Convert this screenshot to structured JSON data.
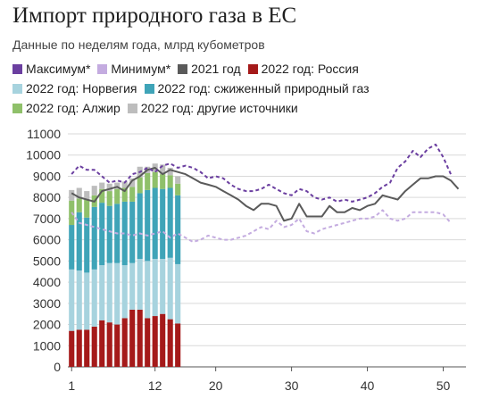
{
  "title": "Импорт природного газа в ЕС",
  "subtitle": "Данные по неделям года, млрд кубометров",
  "legend": [
    [
      {
        "label": "Максимум*",
        "color": "#6b3fa0"
      },
      {
        "label": "Минимум*",
        "color": "#c4ace0"
      },
      {
        "label": "2021 год",
        "color": "#5a5a5a"
      },
      {
        "label": "2022 год: Россия",
        "color": "#a51a1a"
      }
    ],
    [
      {
        "label": "2022 год: Норвегия",
        "color": "#a7d3de"
      },
      {
        "label": "2022 год: сжиженный природный газ",
        "color": "#3fa4b8"
      }
    ],
    [
      {
        "label": "2022 год: Алжир",
        "color": "#8fc06a"
      },
      {
        "label": "2022 год: другие источники",
        "color": "#bdbdbd"
      }
    ]
  ],
  "chart_data": {
    "type": "bar",
    "ylim": [
      0,
      11000
    ],
    "xlim": [
      0.5,
      53
    ],
    "grid": true,
    "yticks": [
      0,
      1000,
      2000,
      3000,
      4000,
      5000,
      6000,
      7000,
      8000,
      9000,
      10000,
      11000
    ],
    "xticks": [
      1,
      12,
      20,
      30,
      40,
      50
    ],
    "stacked_series": [
      {
        "name": "2022 год: Россия",
        "color": "#a51a1a",
        "x": [
          1,
          2,
          3,
          4,
          5,
          6,
          7,
          8,
          9,
          10,
          11,
          12,
          13,
          14,
          15
        ],
        "values": [
          1700,
          1750,
          1750,
          1900,
          2200,
          2100,
          2000,
          2300,
          2700,
          2700,
          2300,
          2400,
          2500,
          2250,
          2050
        ]
      },
      {
        "name": "2022 год: Норвегия",
        "color": "#a7d3de",
        "x": [
          1,
          2,
          3,
          4,
          5,
          6,
          7,
          8,
          9,
          10,
          11,
          12,
          13,
          14,
          15
        ],
        "values": [
          2900,
          2800,
          2700,
          2700,
          2600,
          2800,
          2900,
          2500,
          2200,
          2400,
          2700,
          2700,
          2600,
          2900,
          2800
        ]
      },
      {
        "name": "2022 год: сжиженный природный газ",
        "color": "#3fa4b8",
        "x": [
          1,
          2,
          3,
          4,
          5,
          6,
          7,
          8,
          9,
          10,
          11,
          12,
          13,
          14,
          15
        ],
        "values": [
          2100,
          2750,
          2600,
          2950,
          2950,
          2700,
          2800,
          3000,
          2900,
          3100,
          3350,
          3350,
          3300,
          3300,
          3250
        ]
      },
      {
        "name": "2022 год: Алжир",
        "color": "#8fc06a",
        "x": [
          1,
          2,
          3,
          4,
          5,
          6,
          7,
          8,
          9,
          10,
          11,
          12,
          13,
          14,
          15
        ],
        "values": [
          1150,
          650,
          850,
          550,
          650,
          700,
          700,
          650,
          700,
          750,
          800,
          750,
          700,
          600,
          550
        ]
      },
      {
        "name": "2022 год: другие источники",
        "color": "#bdbdbd",
        "x": [
          1,
          2,
          3,
          4,
          5,
          6,
          7,
          8,
          9,
          10,
          11,
          12,
          13,
          14,
          15
        ],
        "values": [
          500,
          500,
          400,
          450,
          300,
          350,
          300,
          300,
          400,
          500,
          300,
          400,
          450,
          350,
          350
        ]
      }
    ],
    "line_series": [
      {
        "name": "2021 год",
        "color": "#5a5a5a",
        "dashed": false,
        "x": [
          1,
          2,
          3,
          4,
          5,
          6,
          7,
          8,
          9,
          10,
          11,
          12,
          13,
          14,
          15,
          16,
          17,
          18,
          19,
          20,
          21,
          22,
          23,
          24,
          25,
          26,
          27,
          28,
          29,
          30,
          31,
          32,
          33,
          34,
          35,
          36,
          37,
          38,
          39,
          40,
          41,
          42,
          43,
          44,
          45,
          46,
          47,
          48,
          49,
          50,
          51,
          52
        ],
        "values": [
          8200,
          8000,
          7900,
          7800,
          8300,
          8400,
          8500,
          8300,
          8800,
          9000,
          9300,
          9400,
          9100,
          9300,
          9200,
          9100,
          8900,
          8700,
          8600,
          8500,
          8300,
          8100,
          7900,
          7600,
          7400,
          7700,
          7700,
          7600,
          6900,
          7000,
          7700,
          7100,
          7100,
          7100,
          7600,
          7300,
          7300,
          7500,
          7400,
          7600,
          7700,
          8100,
          8000,
          7900,
          8300,
          8600,
          8900,
          8900,
          9000,
          9000,
          8800,
          8400
        ]
      },
      {
        "name": "Максимум*",
        "color": "#6b3fa0",
        "dashed": true,
        "x": [
          1,
          2,
          3,
          4,
          5,
          6,
          7,
          8,
          9,
          10,
          11,
          12,
          13,
          14,
          15,
          16,
          17,
          18,
          19,
          20,
          21,
          22,
          23,
          24,
          25,
          26,
          27,
          28,
          29,
          30,
          31,
          32,
          33,
          34,
          35,
          36,
          37,
          38,
          39,
          40,
          41,
          42,
          43,
          44,
          45,
          46,
          47,
          48,
          49,
          50,
          51
        ],
        "values": [
          9100,
          9500,
          9300,
          9300,
          9000,
          8700,
          8800,
          8700,
          9100,
          9200,
          9400,
          9200,
          9500,
          9600,
          9400,
          9500,
          9400,
          9200,
          8900,
          9000,
          8900,
          8600,
          8400,
          8300,
          8300,
          8400,
          8600,
          8400,
          8200,
          8100,
          8400,
          8300,
          8000,
          7900,
          8000,
          7800,
          7900,
          7800,
          7900,
          8000,
          8200,
          8500,
          8700,
          9400,
          9700,
          10200,
          9900,
          10300,
          10500,
          9900,
          9100
        ]
      },
      {
        "name": "Минимум*",
        "color": "#c4ace0",
        "dashed": true,
        "x": [
          1,
          2,
          3,
          4,
          5,
          6,
          7,
          8,
          9,
          10,
          11,
          12,
          13,
          14,
          15,
          16,
          17,
          18,
          19,
          20,
          21,
          22,
          23,
          24,
          25,
          26,
          27,
          28,
          29,
          30,
          31,
          32,
          33,
          34,
          35,
          36,
          37,
          38,
          39,
          40,
          41,
          42,
          43,
          44,
          45,
          46,
          47,
          48,
          49,
          50,
          51
        ],
        "values": [
          7300,
          6800,
          6700,
          6600,
          6500,
          6400,
          6300,
          6300,
          6200,
          6300,
          6200,
          6300,
          6400,
          6100,
          6300,
          6100,
          5900,
          6000,
          6200,
          6100,
          6000,
          6000,
          6100,
          6200,
          6400,
          6600,
          6500,
          6900,
          6600,
          6700,
          7000,
          6400,
          6300,
          6500,
          6600,
          6700,
          6800,
          6900,
          7000,
          7000,
          7100,
          7400,
          7000,
          6900,
          7000,
          7300,
          7300,
          7300,
          7300,
          7200,
          6800
        ]
      }
    ]
  }
}
